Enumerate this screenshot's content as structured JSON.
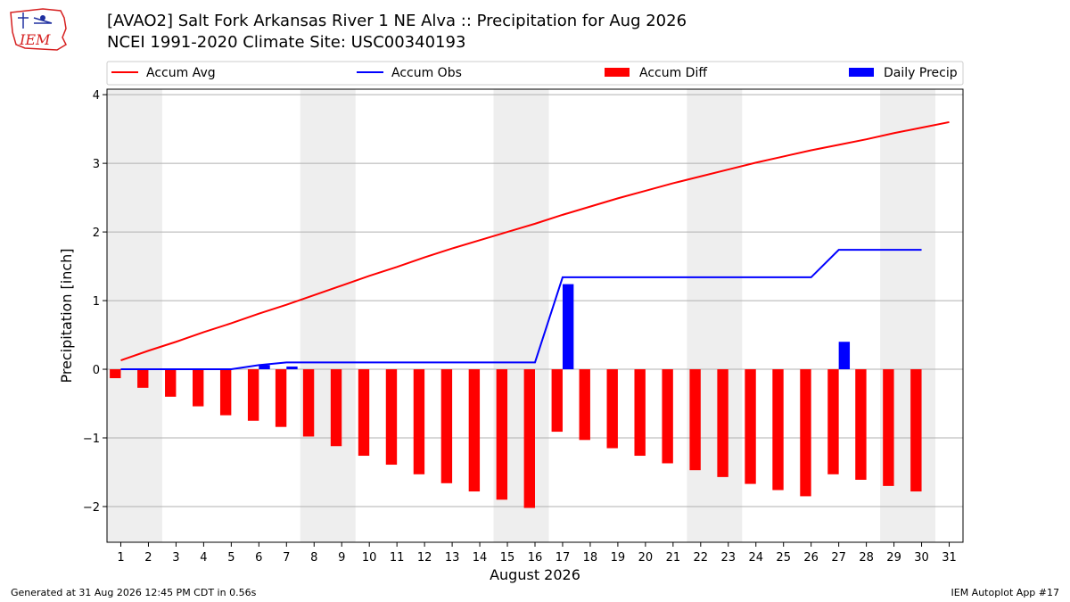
{
  "header": {
    "title": "[AVAO2] Salt Fork Arkansas River 1 NE Alva :: Precipitation for Aug 2026",
    "subtitle": "NCEI 1991-2020 Climate Site: USC00340193"
  },
  "logo": {
    "text": "IEM",
    "icon": "iem-logo-icon",
    "color": "#d62020"
  },
  "footer": {
    "left": "Generated at 31 Aug 2026 12:45 PM CDT in 0.56s",
    "right": "IEM Autoplot App #17"
  },
  "chart_data": {
    "type": "bar",
    "xlabel": "August 2026",
    "ylabel": "Precipitation [inch]",
    "ylim": [
      -2.52,
      4.08
    ],
    "xlim": [
      0.5,
      31.5
    ],
    "yticks": [
      -2,
      -1,
      0,
      1,
      2,
      3,
      4
    ],
    "ytick_labels": [
      "−2",
      "−1",
      "0",
      "1",
      "2",
      "3",
      "4"
    ],
    "xticks": [
      1,
      2,
      3,
      4,
      5,
      6,
      7,
      8,
      9,
      10,
      11,
      12,
      13,
      14,
      15,
      16,
      17,
      18,
      19,
      20,
      21,
      22,
      23,
      24,
      25,
      26,
      27,
      28,
      29,
      30,
      31
    ],
    "xtick_labels": [
      "1",
      "2",
      "3",
      "4",
      "5",
      "6",
      "7",
      "8",
      "9",
      "10",
      "11",
      "12",
      "13",
      "14",
      "15",
      "16",
      "17",
      "18",
      "19",
      "20",
      "21",
      "22",
      "23",
      "24",
      "25",
      "26",
      "27",
      "28",
      "29",
      "30",
      "31"
    ],
    "grid": "horizontal",
    "weekend_shading": [
      [
        1,
        2
      ],
      [
        8,
        9
      ],
      [
        15,
        16
      ],
      [
        22,
        23
      ],
      [
        29,
        30
      ]
    ],
    "legend": {
      "placement": "top",
      "entries": [
        {
          "label": "Accum Avg",
          "kind": "line",
          "color": "#ff0000"
        },
        {
          "label": "Accum Obs",
          "kind": "line",
          "color": "#0000ff"
        },
        {
          "label": "Accum Diff",
          "kind": "bar",
          "color": "#ff0000"
        },
        {
          "label": "Daily Precip",
          "kind": "bar",
          "color": "#0000ff"
        }
      ]
    },
    "days": [
      1,
      2,
      3,
      4,
      5,
      6,
      7,
      8,
      9,
      10,
      11,
      12,
      13,
      14,
      15,
      16,
      17,
      18,
      19,
      20,
      21,
      22,
      23,
      24,
      25,
      26,
      27,
      28,
      29,
      30,
      31
    ],
    "series": [
      {
        "name": "Accum Avg",
        "type": "line",
        "color": "#ff0000",
        "values": [
          0.13,
          0.27,
          0.4,
          0.54,
          0.67,
          0.81,
          0.94,
          1.08,
          1.22,
          1.36,
          1.49,
          1.63,
          1.76,
          1.88,
          2.0,
          2.12,
          2.25,
          2.37,
          2.49,
          2.6,
          2.71,
          2.81,
          2.91,
          3.01,
          3.1,
          3.19,
          3.27,
          3.35,
          3.44,
          3.52,
          3.6
        ]
      },
      {
        "name": "Accum Obs",
        "type": "line",
        "color": "#0000ff",
        "values": [
          0.0,
          0.0,
          0.0,
          0.0,
          0.0,
          0.06,
          0.1,
          0.1,
          0.1,
          0.1,
          0.1,
          0.1,
          0.1,
          0.1,
          0.1,
          0.1,
          1.34,
          1.34,
          1.34,
          1.34,
          1.34,
          1.34,
          1.34,
          1.34,
          1.34,
          1.34,
          1.74,
          1.74,
          1.74,
          1.74
        ]
      },
      {
        "name": "Accum Diff",
        "type": "bar",
        "color": "#ff0000",
        "values": [
          -0.13,
          -0.27,
          -0.4,
          -0.54,
          -0.67,
          -0.75,
          -0.84,
          -0.98,
          -1.12,
          -1.26,
          -1.39,
          -1.53,
          -1.66,
          -1.78,
          -1.9,
          -2.02,
          -0.91,
          -1.03,
          -1.15,
          -1.26,
          -1.37,
          -1.47,
          -1.57,
          -1.67,
          -1.76,
          -1.85,
          -1.53,
          -1.61,
          -1.7,
          -1.78
        ]
      },
      {
        "name": "Daily Precip",
        "type": "bar",
        "color": "#0000ff",
        "values": [
          0,
          0,
          0,
          0,
          0,
          0.06,
          0.04,
          0,
          0,
          0,
          0,
          0,
          0,
          0,
          0,
          0,
          1.24,
          0,
          0,
          0,
          0,
          0,
          0,
          0,
          0,
          0,
          0.4,
          0,
          0,
          0
        ]
      }
    ]
  }
}
